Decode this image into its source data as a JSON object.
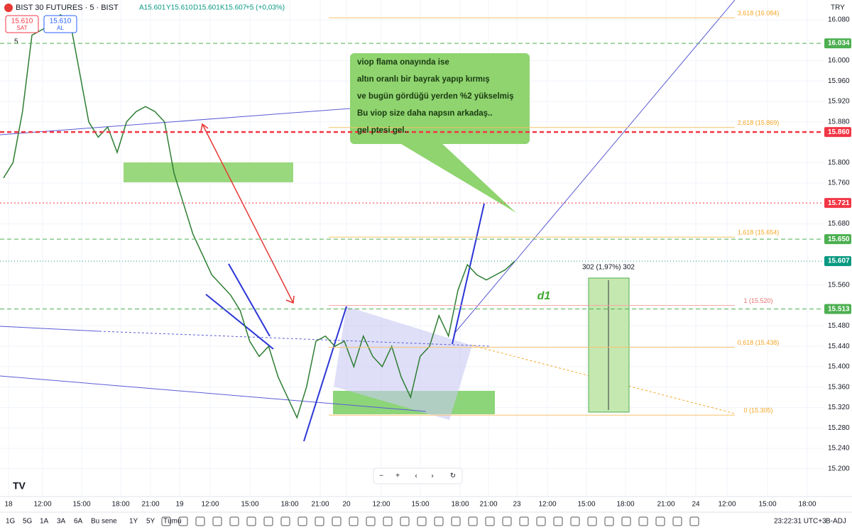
{
  "header": {
    "symbol": "BIST 30 FUTURES · 5 · BIST",
    "ohlc": [
      "A15.601",
      "Y15.610",
      "D15.601",
      "K15.607"
    ],
    "change": "+5 (+0,03%)",
    "sell_price": "15.610",
    "sell": "SAT",
    "buy_price": "15.610",
    "buy": "AL",
    "interval": "5",
    "currency": "TRY"
  },
  "price_axis": {
    "ticks": [
      {
        "value": 16.08,
        "label": "16.080"
      },
      {
        "value": 16.0,
        "label": "16.000"
      },
      {
        "value": 15.96,
        "label": "15.960"
      },
      {
        "value": 15.92,
        "label": "15.920"
      },
      {
        "value": 15.88,
        "label": "15.880"
      },
      {
        "value": 15.8,
        "label": "15.800"
      },
      {
        "value": 15.76,
        "label": "15.760"
      },
      {
        "value": 15.68,
        "label": "15.680"
      },
      {
        "value": 15.56,
        "label": "15.560"
      },
      {
        "value": 15.48,
        "label": "15.480"
      },
      {
        "value": 15.44,
        "label": "15.440"
      },
      {
        "value": 15.4,
        "label": "15.400"
      },
      {
        "value": 15.36,
        "label": "15.360"
      },
      {
        "value": 15.32,
        "label": "15.320"
      },
      {
        "value": 15.28,
        "label": "15.280"
      },
      {
        "value": 15.24,
        "label": "15.240"
      },
      {
        "value": 15.2,
        "label": "15.200"
      }
    ]
  },
  "levels": [
    {
      "value": 16.034,
      "label": "16.034",
      "color": "#4caf50"
    },
    {
      "value": 15.86,
      "label": "15.860",
      "color": "#f23645"
    },
    {
      "value": 15.721,
      "label": "15.721",
      "color": "#f23645"
    },
    {
      "value": 15.65,
      "label": "15.650",
      "color": "#4caf50"
    },
    {
      "value": 15.607,
      "label": "15.607",
      "color": "#089981"
    },
    {
      "value": 15.513,
      "label": "15.513",
      "color": "#4caf50"
    }
  ],
  "fib": [
    {
      "value": 16.084,
      "label": "3,618 (16.084)"
    },
    {
      "value": 15.869,
      "label": "2,618 (15.869)"
    },
    {
      "value": 15.654,
      "label": "1,618 (15.654)"
    },
    {
      "value": 15.52,
      "label": "1 (15.520)"
    },
    {
      "value": 15.438,
      "label": "0,618 (15.438)"
    },
    {
      "value": 15.305,
      "label": "0 (15.305)"
    }
  ],
  "time_axis": [
    "18",
    "12:00",
    "15:00",
    "18:00",
    "21:00",
    "19",
    "12:00",
    "15:00",
    "18:00",
    "21:00",
    "20",
    "12:00",
    "15:00",
    "18:00",
    "21:00",
    "23",
    "12:00",
    "15:00",
    "18:00",
    "21:00",
    "24",
    "12:00",
    "15:00",
    "18:00"
  ],
  "annotation": [
    "viop flama onayında ise",
    "altın oranlı bir bayrak yapıp kırmış",
    "ve bugün gördüğü yerden %2 yükselmiş",
    "Bu viop size daha napsın arkadaş..",
    "gel ptesi gel.."
  ],
  "measure": "302 (1,97%) 302",
  "text_label": "d1",
  "price": {
    "closes": [
      15.77,
      15.8,
      15.9,
      16.05,
      16.06,
      16.07,
      16.09,
      16.08,
      15.98,
      15.88,
      15.85,
      15.87,
      15.82,
      15.88,
      15.9,
      15.91,
      15.9,
      15.88,
      15.78,
      15.72,
      15.66,
      15.62,
      15.58,
      15.56,
      15.54,
      15.51,
      15.45,
      15.42,
      15.44,
      15.38,
      15.34,
      15.3,
      15.36,
      15.45,
      15.46,
      15.44,
      15.45,
      15.4,
      15.46,
      15.42,
      15.4,
      15.44,
      15.38,
      15.34,
      15.42,
      15.44,
      15.5,
      15.46,
      15.55,
      15.6,
      15.58,
      15.57,
      15.58,
      15.59,
      15.607
    ]
  },
  "footer": {
    "ranges": [
      "1G",
      "5G",
      "1A",
      "3A",
      "6A",
      "Bu sene",
      "1Y",
      "5Y",
      "Tümü"
    ],
    "clock": "23:22:31 UTC+3",
    "adj": "B-ADJ"
  }
}
